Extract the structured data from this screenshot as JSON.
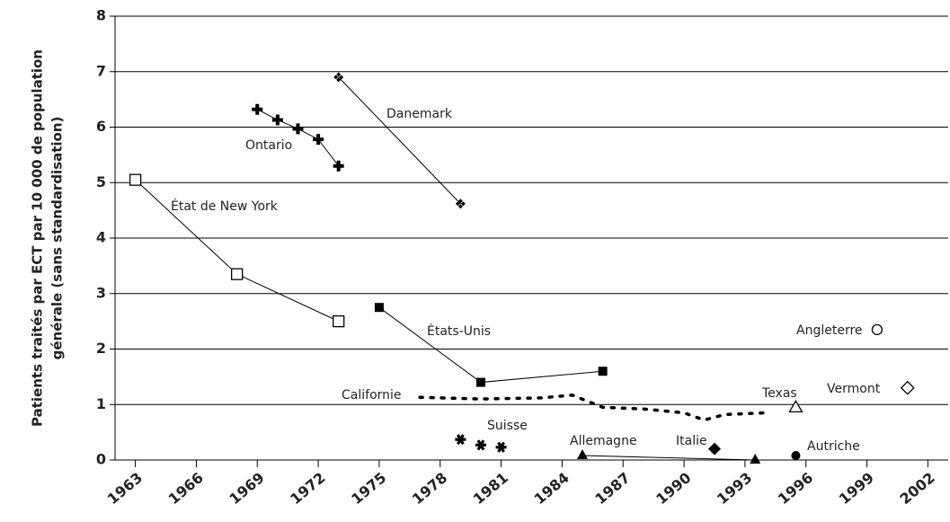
{
  "chart_data": {
    "type": "line",
    "y_label": [
      "Patients traités par ECT par 10 000 de population",
      "générale (sans standardisation)"
    ],
    "xlim": [
      1962,
      2003
    ],
    "ylim": [
      0,
      8
    ],
    "xticks": [
      1963,
      1966,
      1969,
      1972,
      1975,
      1978,
      1981,
      1984,
      1987,
      1990,
      1993,
      1996,
      1999,
      2002
    ],
    "yticks": [
      0,
      1,
      2,
      3,
      4,
      5,
      6,
      7,
      8
    ],
    "grid": true,
    "color": "#000000",
    "series": [
      {
        "name": "État de New York",
        "x": [
          1963,
          1968,
          1973
        ],
        "values": [
          5.05,
          3.35,
          2.5
        ],
        "marker": "square-open",
        "line": "solid"
      },
      {
        "name": "Ontario",
        "x": [
          1969,
          1970,
          1971,
          1972,
          1973
        ],
        "values": [
          6.32,
          6.13,
          5.97,
          5.78,
          5.3
        ],
        "marker": "plus",
        "line": "solid"
      },
      {
        "name": "Danemark",
        "x": [
          1973,
          1979
        ],
        "values": [
          6.9,
          4.62
        ],
        "marker": "clover",
        "line": "solid"
      },
      {
        "name": "États-Unis",
        "x": [
          1975,
          1980,
          1986
        ],
        "values": [
          2.75,
          1.4,
          1.6
        ],
        "marker": "square",
        "line": "solid"
      },
      {
        "name": "Californie",
        "x": [
          1977,
          1980,
          1983,
          1984.5,
          1986,
          1988,
          1990,
          1991,
          1992,
          1994
        ],
        "values": [
          1.13,
          1.1,
          1.12,
          1.17,
          0.95,
          0.92,
          0.85,
          0.72,
          0.82,
          0.85
        ],
        "marker": "none",
        "line": "dotted"
      },
      {
        "name": "Suisse",
        "x": [
          1979,
          1980,
          1981
        ],
        "values": [
          0.37,
          0.27,
          0.23
        ],
        "marker": "asterisk",
        "line": "none"
      },
      {
        "name": "Allemagne",
        "x": [
          1985,
          1993.5
        ],
        "values": [
          0.08,
          0.0
        ],
        "marker": "triangle",
        "line": "solid"
      },
      {
        "name": "Italie",
        "x": [
          1991.5
        ],
        "values": [
          0.2
        ],
        "marker": "diamond",
        "line": "none"
      },
      {
        "name": "Autriche",
        "x": [
          1995.5
        ],
        "values": [
          0.08
        ],
        "marker": "circle",
        "line": "none"
      },
      {
        "name": "Texas",
        "x": [
          1995.5
        ],
        "values": [
          0.95
        ],
        "marker": "triangle-open",
        "line": "none"
      },
      {
        "name": "Angleterre",
        "x": [
          1999.5
        ],
        "values": [
          2.35
        ],
        "marker": "circle-open",
        "line": "none"
      },
      {
        "name": "Vermont",
        "x": [
          2001
        ],
        "values": [
          1.3
        ],
        "marker": "diamond-open",
        "line": "none"
      }
    ]
  }
}
